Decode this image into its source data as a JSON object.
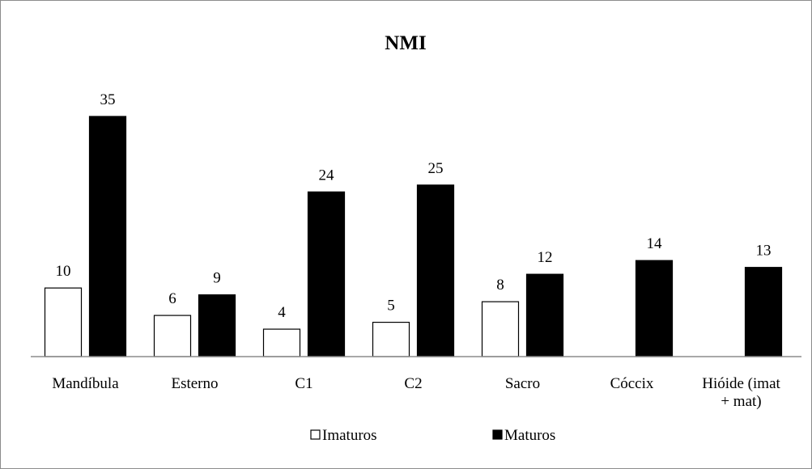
{
  "chart_data": {
    "type": "bar",
    "title": "NMI",
    "xlabel": "",
    "ylabel": "",
    "categories": [
      "Mandíbula",
      "Esterno",
      "C1",
      "C2",
      "Sacro",
      "Cóccix",
      "Hióide (imat + mat)"
    ],
    "category_lines": [
      [
        "Mandíbula"
      ],
      [
        "Esterno"
      ],
      [
        "C1"
      ],
      [
        "C2"
      ],
      [
        "Sacro"
      ],
      [
        "Cóccix"
      ],
      [
        "Hióide (imat",
        "+ mat)"
      ]
    ],
    "series": [
      {
        "name": "Imaturos",
        "values": [
          10,
          6,
          4,
          5,
          8,
          null,
          null
        ],
        "fill": "#ffffff",
        "stroke": "#000000"
      },
      {
        "name": "Maturos",
        "values": [
          35,
          9,
          24,
          25,
          12,
          14,
          13
        ],
        "fill": "#000000",
        "stroke": "#000000"
      }
    ],
    "ylim": [
      0,
      35
    ],
    "grid": false,
    "legend_position": "bottom"
  }
}
